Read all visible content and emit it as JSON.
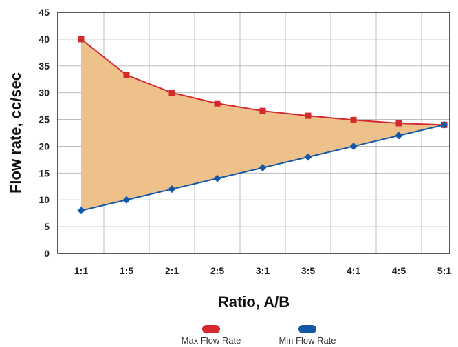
{
  "chart_data": {
    "type": "line",
    "xlabel": "Ratio, A/B",
    "ylabel": "Flow rate, cc/sec",
    "categories": [
      "1:1",
      "1:5",
      "2:1",
      "2:5",
      "3:1",
      "3:5",
      "4:1",
      "4:5",
      "5:1"
    ],
    "ylim": [
      0,
      45
    ],
    "yticks": [
      0,
      5,
      10,
      15,
      20,
      25,
      30,
      35,
      40,
      45
    ],
    "grid": true,
    "fill_between": {
      "color": "#EEC08A"
    },
    "series": [
      {
        "name": "Max Flow Rate",
        "color": "#D42A2F",
        "marker": "square",
        "values": [
          40,
          33.3,
          30,
          28,
          26.6,
          25.7,
          24.9,
          24.3,
          24
        ]
      },
      {
        "name": "Min Flow Rate",
        "color": "#1458A8",
        "marker": "diamond",
        "values": [
          8,
          10,
          12,
          14,
          16,
          18,
          20,
          22,
          24
        ]
      }
    ],
    "legend_position": "bottom"
  }
}
